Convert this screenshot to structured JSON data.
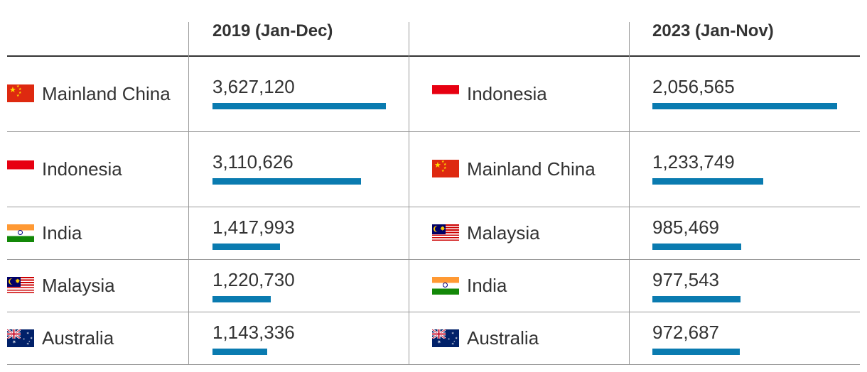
{
  "colors": {
    "bar": "#0a7bb0",
    "rule": "#999999",
    "header_rule": "#333333",
    "text": "#333333"
  },
  "chart_data": {
    "type": "table",
    "columns": [
      {
        "header": "2019 (Jan-Dec)",
        "max": 3627120
      },
      {
        "header": "2023 (Jan-Nov)",
        "max": 2056565
      }
    ],
    "rows_2019": [
      {
        "country": "Mainland China",
        "flag": "china-flag-icon",
        "value": 3627120,
        "label": "3,627,120"
      },
      {
        "country": "Indonesia",
        "flag": "indonesia-flag-icon",
        "value": 3110626,
        "label": "3,110,626"
      },
      {
        "country": "India",
        "flag": "india-flag-icon",
        "value": 1417993,
        "label": "1,417,993"
      },
      {
        "country": "Malaysia",
        "flag": "malaysia-flag-icon",
        "value": 1220730,
        "label": "1,220,730"
      },
      {
        "country": "Australia",
        "flag": "australia-flag-icon",
        "value": 1143336,
        "label": "1,143,336"
      }
    ],
    "rows_2023": [
      {
        "country": "Indonesia",
        "flag": "indonesia-flag-icon",
        "value": 2056565,
        "label": "2,056,565"
      },
      {
        "country": "Mainland China",
        "flag": "china-flag-icon",
        "value": 1233749,
        "label": "1,233,749"
      },
      {
        "country": "Malaysia",
        "flag": "malaysia-flag-icon",
        "value": 985469,
        "label": "985,469"
      },
      {
        "country": "India",
        "flag": "india-flag-icon",
        "value": 977543,
        "label": "977,543"
      },
      {
        "country": "Australia",
        "flag": "australia-flag-icon",
        "value": 972687,
        "label": "972,687"
      }
    ]
  }
}
